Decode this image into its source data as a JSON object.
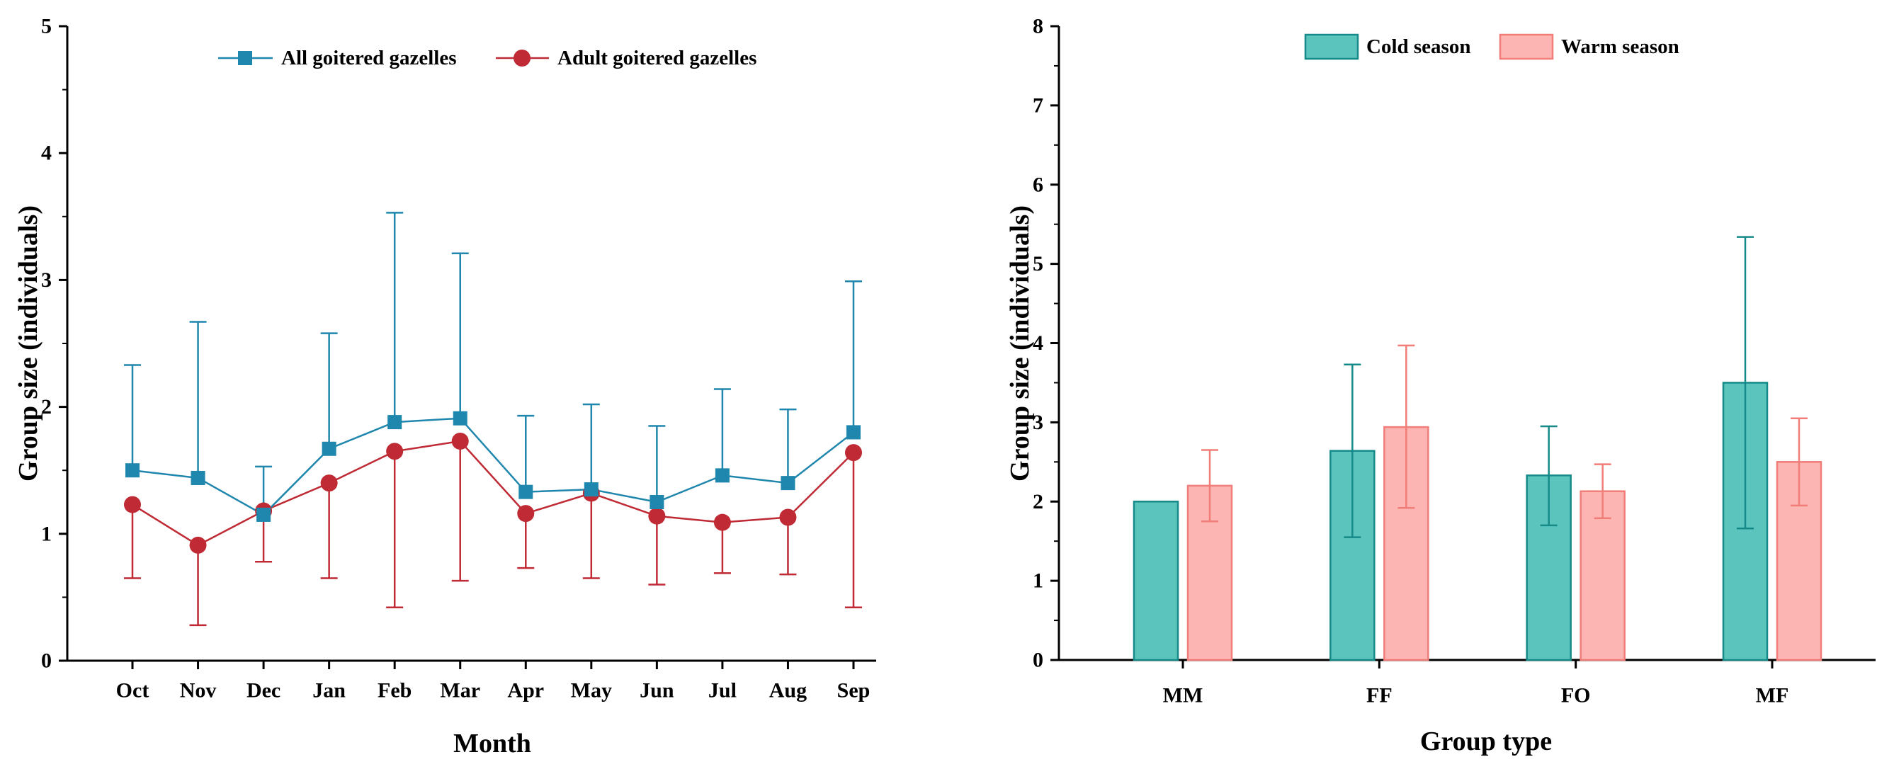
{
  "chart_data": [
    {
      "type": "line",
      "xlabel": "Month",
      "ylabel": "Group size (individuals)",
      "categories": [
        "Oct",
        "Nov",
        "Dec",
        "Jan",
        "Feb",
        "Mar",
        "Apr",
        "May",
        "Jun",
        "Jul",
        "Aug",
        "Sep"
      ],
      "ylim": [
        0,
        5
      ],
      "yticks": [
        0,
        1,
        2,
        3,
        4,
        5
      ],
      "legend_position": "top-center",
      "series": [
        {
          "name": "All goitered gazelles",
          "marker": "square",
          "color": "#1f86ad",
          "values": [
            1.5,
            1.44,
            1.15,
            1.67,
            1.88,
            1.91,
            1.33,
            1.35,
            1.25,
            1.46,
            1.4,
            1.8
          ],
          "error_upper": [
            2.33,
            2.67,
            1.53,
            2.58,
            3.53,
            3.21,
            1.93,
            2.02,
            1.85,
            2.14,
            1.98,
            2.99
          ]
        },
        {
          "name": "Adult goitered gazelles",
          "marker": "circle",
          "color": "#bf2a34",
          "values": [
            1.23,
            0.91,
            1.18,
            1.4,
            1.65,
            1.73,
            1.16,
            1.32,
            1.14,
            1.09,
            1.13,
            1.64
          ],
          "error_lower": [
            0.65,
            0.28,
            0.78,
            0.65,
            0.42,
            0.63,
            0.73,
            0.65,
            0.6,
            0.69,
            0.68,
            0.42
          ]
        }
      ]
    },
    {
      "type": "bar",
      "xlabel": "Group type",
      "ylabel": "Group size (individuals)",
      "categories": [
        "MM",
        "FF",
        "FO",
        "MF"
      ],
      "ylim": [
        0,
        8
      ],
      "yticks": [
        0,
        1,
        2,
        3,
        4,
        5,
        6,
        7,
        8
      ],
      "legend_position": "top-center",
      "series": [
        {
          "name": "Cold season",
          "fill": "#5bc4bc",
          "stroke": "#168a88",
          "values": [
            2.0,
            2.64,
            2.33,
            3.5
          ],
          "error_low": [
            null,
            1.55,
            1.7,
            1.66
          ],
          "error_high": [
            null,
            3.73,
            2.95,
            5.34
          ]
        },
        {
          "name": "Warm season",
          "fill": "#fdb5b4",
          "stroke": "#f17d79",
          "values": [
            2.2,
            2.94,
            2.13,
            2.5
          ],
          "error_low": [
            1.75,
            1.92,
            1.79,
            1.95
          ],
          "error_high": [
            2.65,
            3.97,
            2.47,
            3.05
          ]
        }
      ]
    }
  ]
}
